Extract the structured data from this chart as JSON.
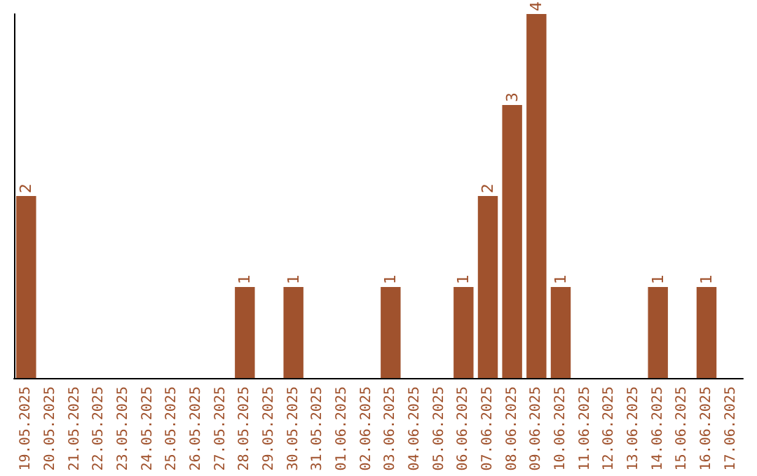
{
  "chart_data": {
    "type": "bar",
    "categories": [
      "19.05.2025",
      "20.05.2025",
      "21.05.2025",
      "22.05.2025",
      "23.05.2025",
      "24.05.2025",
      "25.05.2025",
      "26.05.2025",
      "27.05.2025",
      "28.05.2025",
      "29.05.2025",
      "30.05.2025",
      "31.05.2025",
      "01.06.2025",
      "02.06.2025",
      "03.06.2025",
      "04.06.2025",
      "05.06.2025",
      "06.06.2025",
      "07.06.2025",
      "08.06.2025",
      "09.06.2025",
      "10.06.2025",
      "11.06.2025",
      "12.06.2025",
      "13.06.2025",
      "14.06.2025",
      "15.06.2025",
      "16.06.2025",
      "17.06.2025"
    ],
    "values": [
      2,
      0,
      0,
      0,
      0,
      0,
      0,
      0,
      0,
      1,
      0,
      1,
      0,
      0,
      0,
      1,
      0,
      0,
      1,
      2,
      3,
      4,
      1,
      0,
      0,
      0,
      1,
      0,
      1,
      0
    ],
    "value_labels": [
      "2",
      null,
      null,
      null,
      null,
      null,
      null,
      null,
      null,
      "1",
      null,
      "1",
      null,
      null,
      null,
      "1",
      null,
      null,
      "1",
      "2",
      "3",
      "4",
      "1",
      null,
      null,
      null,
      "1",
      null,
      "1",
      null
    ],
    "color": "#a0522d",
    "tick_labels": "x"
  }
}
